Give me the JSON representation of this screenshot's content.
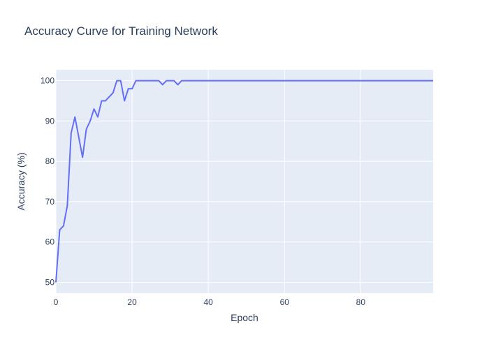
{
  "chart_data": {
    "type": "line",
    "title": "Accuracy Curve for Training Network",
    "xlabel": "Epoch",
    "ylabel": "Accuracy (%)",
    "xlim": [
      0,
      99
    ],
    "ylim": [
      47.3,
      102.7
    ],
    "x_ticks": [
      0,
      20,
      40,
      60,
      80
    ],
    "y_ticks": [
      50,
      60,
      70,
      80,
      90,
      100
    ],
    "grid": true,
    "legend": "none",
    "colors": {
      "plot_bg": "#e5ecf6",
      "grid": "#ffffff",
      "line": "#636efa",
      "text": "#2a3f5f"
    },
    "series": [
      {
        "x": [
          0,
          1,
          2,
          3,
          4,
          5,
          6,
          7,
          8,
          9,
          10,
          11,
          12,
          13,
          14,
          15,
          16,
          17,
          18,
          19,
          20,
          21,
          22,
          23,
          24,
          25,
          26,
          27,
          28,
          29,
          30,
          31,
          32,
          33,
          34,
          35,
          36,
          37,
          38,
          39,
          40,
          41,
          42,
          43,
          44,
          45,
          46,
          47,
          48,
          49,
          50,
          51,
          52,
          53,
          54,
          55,
          56,
          57,
          58,
          59,
          60,
          61,
          62,
          63,
          64,
          65,
          66,
          67,
          68,
          69,
          70,
          71,
          72,
          73,
          74,
          75,
          76,
          77,
          78,
          79,
          80,
          81,
          82,
          83,
          84,
          85,
          86,
          87,
          88,
          89,
          90,
          91,
          92,
          93,
          94,
          95,
          96,
          97,
          98,
          99
        ],
        "y": [
          50,
          63,
          64,
          69,
          87,
          91,
          86,
          81,
          88,
          90,
          93,
          91,
          95,
          95,
          96,
          97,
          100,
          100,
          95,
          98,
          98,
          100,
          100,
          100,
          100,
          100,
          100,
          100,
          99,
          100,
          100,
          100,
          99,
          100,
          100,
          100,
          100,
          100,
          100,
          100,
          100,
          100,
          100,
          100,
          100,
          100,
          100,
          100,
          100,
          100,
          100,
          100,
          100,
          100,
          100,
          100,
          100,
          100,
          100,
          100,
          100,
          100,
          100,
          100,
          100,
          100,
          100,
          100,
          100,
          100,
          100,
          100,
          100,
          100,
          100,
          100,
          100,
          100,
          100,
          100,
          100,
          100,
          100,
          100,
          100,
          100,
          100,
          100,
          100,
          100,
          100,
          100,
          100,
          100,
          100,
          100,
          100,
          100,
          100,
          100
        ]
      }
    ]
  }
}
